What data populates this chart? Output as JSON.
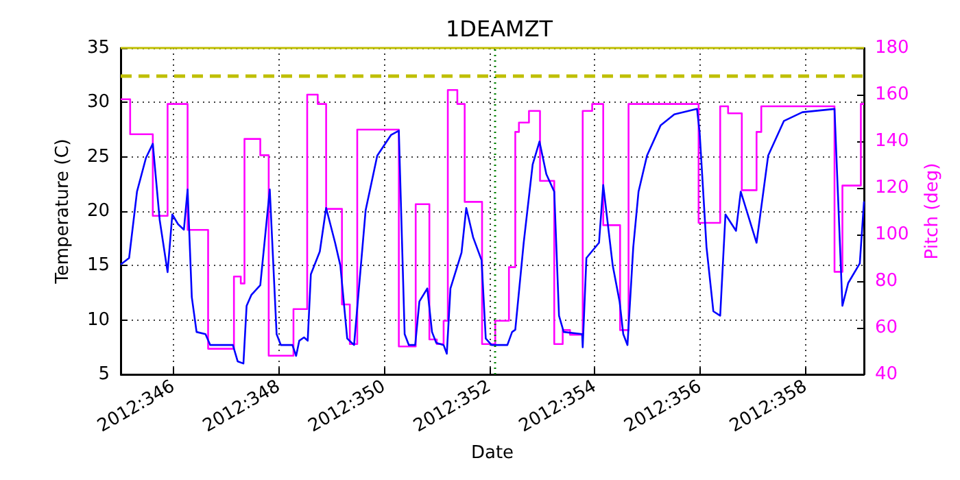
{
  "chart_data": {
    "type": "line",
    "title": "1DEAMZT",
    "xlabel": "Date",
    "ylabel": "Temperature (C)",
    "y2label": "Pitch (deg)",
    "xlim": [
      "2012-12-10T00:00",
      "2012-12-24T02:38"
    ],
    "xticks": [
      {
        "value": "2012-12-11",
        "label": "2012:346"
      },
      {
        "value": "2012-12-13",
        "label": "2012:348"
      },
      {
        "value": "2012-12-15",
        "label": "2012:350"
      },
      {
        "value": "2012-12-17",
        "label": "2012:352"
      },
      {
        "value": "2012-12-19",
        "label": "2012:354"
      },
      {
        "value": "2012-12-21",
        "label": "2012:356"
      },
      {
        "value": "2012-12-23",
        "label": "2012:358"
      }
    ],
    "ylim": [
      5,
      35
    ],
    "yticks": [
      5,
      10,
      15,
      20,
      25,
      30,
      35
    ],
    "y2lim": [
      40,
      180
    ],
    "y2ticks": [
      40,
      60,
      80,
      100,
      120,
      140,
      160,
      180
    ],
    "grid": true,
    "marker": "none",
    "line_style": "solid",
    "series": [
      {
        "color": "#0000ff",
        "x": [
          "2012-12-10T00:00",
          "2012-12-10T03:50",
          "2012-12-10T07:26",
          "2012-12-10T11:31",
          "2012-12-10T14:38",
          "2012-12-10T17:46",
          "2012-12-10T21:22",
          "2012-12-10T23:31",
          "2012-12-11T02:10",
          "2012-12-11T04:48",
          "2012-12-11T06:29",
          "2012-12-11T08:24",
          "2012-12-11T10:34",
          "2012-12-11T14:38",
          "2012-12-11T16:48",
          "2012-12-12T03:07",
          "2012-12-12T05:17",
          "2012-12-12T07:55",
          "2012-12-12T09:22",
          "2012-12-12T11:31",
          "2012-12-12T15:36",
          "2012-12-12T19:55",
          "2012-12-12T23:02",
          "2012-12-13T00:58",
          "2012-12-13T06:14",
          "2012-12-13T07:55",
          "2012-12-13T09:22",
          "2012-12-13T11:31",
          "2012-12-13T13:12",
          "2012-12-13T14:38",
          "2012-12-13T18:43",
          "2012-12-13T21:36",
          "2012-12-14T01:41",
          "2012-12-14T04:05",
          "2012-12-14T07:12",
          "2012-12-14T10:19",
          "2012-12-14T15:36",
          "2012-12-14T20:53",
          "2012-12-15T03:07",
          "2012-12-15T06:43",
          "2012-12-15T09:22",
          "2012-12-15T11:17",
          "2012-12-15T14:10",
          "2012-12-15T16:05",
          "2012-12-15T19:41",
          "2012-12-15T21:50",
          "2012-12-15T23:46",
          "2012-12-16T03:07",
          "2012-12-16T04:34",
          "2012-12-16T06:14",
          "2012-12-16T11:17",
          "2012-12-16T13:26",
          "2012-12-16T16:34",
          "2012-12-16T20:24",
          "2012-12-16T22:19",
          "2012-12-17T00:58",
          "2012-12-17T08:10",
          "2012-12-17T10:19",
          "2012-12-17T11:46",
          "2012-12-17T15:36",
          "2012-12-17T19:41",
          "2012-12-17T22:48",
          "2012-12-18T01:55",
          "2012-12-18T05:31",
          "2012-12-18T07:41",
          "2012-12-18T09:50",
          "2012-12-18T18:14",
          "2012-12-18T18:29",
          "2012-12-18T20:10",
          "2012-12-19T01:55",
          "2012-12-19T03:50",
          "2012-12-19T08:10",
          "2012-12-19T11:17",
          "2012-12-19T12:58",
          "2012-12-19T14:53",
          "2012-12-19T17:31",
          "2012-12-19T19:55",
          "2012-12-19T23:46",
          "2012-12-20T06:00",
          "2012-12-20T12:14",
          "2012-12-20T22:34",
          "2012-12-20T23:46",
          "2012-12-21T02:53",
          "2012-12-21T06:00",
          "2012-12-21T09:07",
          "2012-12-21T11:31",
          "2012-12-21T16:19",
          "2012-12-21T18:29",
          "2012-12-22T01:41",
          "2012-12-22T06:58",
          "2012-12-22T14:10",
          "2012-12-22T22:34",
          "2012-12-23T13:12",
          "2012-12-23T16:48",
          "2012-12-23T19:26",
          "2012-12-24T00:43",
          "2012-12-24T02:38"
        ],
        "values": [
          15.1,
          15.7,
          21.8,
          24.9,
          26.2,
          19.2,
          14.4,
          19.7,
          18.8,
          18.3,
          22.0,
          12.1,
          8.9,
          8.7,
          7.7,
          7.7,
          6.2,
          6.0,
          11.3,
          12.3,
          13.2,
          22.0,
          8.7,
          7.7,
          7.7,
          6.7,
          8.1,
          8.4,
          8.1,
          14.2,
          16.3,
          20.3,
          17.1,
          15.0,
          8.3,
          7.7,
          20.1,
          25.1,
          27.0,
          27.4,
          8.7,
          7.7,
          7.7,
          11.7,
          12.9,
          8.9,
          7.9,
          7.7,
          6.9,
          12.9,
          16.2,
          20.3,
          17.6,
          15.5,
          8.3,
          7.7,
          7.7,
          8.9,
          9.1,
          17.1,
          24.3,
          26.4,
          23.4,
          21.8,
          10.4,
          8.9,
          8.7,
          7.5,
          15.7,
          17.1,
          22.4,
          15.0,
          11.7,
          8.7,
          7.7,
          16.7,
          21.8,
          25.1,
          27.9,
          28.9,
          29.4,
          27.2,
          16.7,
          10.8,
          10.4,
          19.7,
          18.2,
          21.8,
          17.1,
          25.1,
          28.3,
          29.1,
          29.4,
          11.3,
          13.4,
          15.2,
          20.9
        ]
      },
      {
        "type": "step",
        "axis": "y2",
        "color": "#ff00ff",
        "x": [
          "2012-12-10T00:00",
          "2012-12-10T04:19",
          "2012-12-10T14:38",
          "2012-12-10T21:22",
          "2012-12-11T06:29",
          "2012-12-11T15:50",
          "2012-12-12T03:36",
          "2012-12-12T06:43",
          "2012-12-12T08:24",
          "2012-12-12T15:36",
          "2012-12-12T19:26",
          "2012-12-13T06:43",
          "2012-12-13T12:58",
          "2012-12-13T17:46",
          "2012-12-13T21:36",
          "2012-12-14T04:48",
          "2012-12-14T08:24",
          "2012-12-14T11:46",
          "2012-12-15T06:43",
          "2012-12-15T14:24",
          "2012-12-15T20:38",
          "2012-12-16T00:00",
          "2012-12-16T03:07",
          "2012-12-16T05:02",
          "2012-12-16T09:22",
          "2012-12-16T12:43",
          "2012-12-16T20:38",
          "2012-12-17T02:38",
          "2012-12-17T08:53",
          "2012-12-17T11:46",
          "2012-12-17T13:26",
          "2012-12-17T18:00",
          "2012-12-17T23:02",
          "2012-12-18T05:31",
          "2012-12-18T09:22",
          "2012-12-18T12:43",
          "2012-12-18T18:29",
          "2012-12-18T22:48",
          "2012-12-19T03:50",
          "2012-12-19T11:31",
          "2012-12-19T15:22",
          "2012-12-20T23:17",
          "2012-12-21T09:07",
          "2012-12-21T12:43",
          "2012-12-21T18:58",
          "2012-12-22T01:41",
          "2012-12-22T03:50",
          "2012-12-23T13:12",
          "2012-12-23T16:48",
          "2012-12-24T01:12",
          "2012-12-24T02:38"
        ],
        "values": [
          158,
          143,
          108,
          156,
          102,
          51,
          82,
          79,
          141,
          134,
          48,
          68,
          160,
          156,
          111,
          70,
          53,
          145,
          52,
          113,
          55,
          53,
          63,
          162,
          156,
          114,
          53,
          63,
          86,
          144,
          148,
          153,
          123,
          53,
          59,
          57,
          153,
          156,
          104,
          59,
          156,
          105,
          155,
          152,
          119,
          144,
          155,
          84,
          121,
          156,
          156
        ]
      }
    ],
    "ref_lines": [
      {
        "axis": "y",
        "value": 35,
        "color": "#bfbf00",
        "line_style": "solid"
      },
      {
        "axis": "y",
        "value": 32.5,
        "color": "#bfbf00",
        "line_style": "dashed"
      },
      {
        "axis": "x",
        "value": "2012-12-17T02:24",
        "color": "#008000",
        "line_style": "dotted"
      }
    ]
  }
}
